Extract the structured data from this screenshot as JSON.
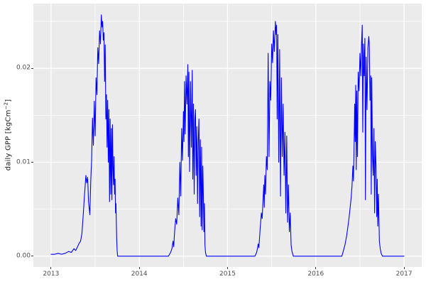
{
  "chart_data": {
    "type": "line",
    "title": "",
    "xlabel": "",
    "ylabel": "daily GPP [kgCm^-2]",
    "ylabel_parts": {
      "main": "daily GPP [kgCm",
      "sup": "−2",
      "close": "]"
    },
    "x_ticks": [
      2013,
      2014,
      2015,
      2016,
      2017
    ],
    "x_minor": [
      2013.5,
      2014.5,
      2015.5,
      2016.5
    ],
    "y_ticks": [
      0.0,
      0.01,
      0.02
    ],
    "y_tick_labels": [
      "0.00",
      "0.01",
      "0.02"
    ],
    "y_minor": [
      0.005,
      0.015,
      0.025
    ],
    "xlim": [
      2012.8,
      2017.2
    ],
    "ylim": [
      -0.00115,
      0.0269
    ],
    "grid": true,
    "legend": "none",
    "colors": {
      "panel_background": "#EBEBEB",
      "grid_major": "#FFFFFF",
      "grid_minor": "#FFFFFF",
      "line": "#0000FF",
      "axis_text": "#4D4D4D",
      "tick_mark": "#333333"
    },
    "series": [
      {
        "name": "daily GPP",
        "color": "#0000FF",
        "points": [
          [
            2013.0,
            0.0002
          ],
          [
            2013.04,
            0.0002
          ],
          [
            2013.08,
            0.0003
          ],
          [
            2013.12,
            0.0002
          ],
          [
            2013.16,
            0.0003
          ],
          [
            2013.2,
            0.0005
          ],
          [
            2013.23,
            0.0004
          ],
          [
            2013.26,
            0.0008
          ],
          [
            2013.28,
            0.0006
          ],
          [
            2013.3,
            0.001
          ],
          [
            2013.32,
            0.0014
          ],
          [
            2013.335,
            0.0016
          ],
          [
            2013.35,
            0.0024
          ],
          [
            2013.365,
            0.0044
          ],
          [
            2013.38,
            0.0066
          ],
          [
            2013.395,
            0.0086
          ],
          [
            2013.405,
            0.0078
          ],
          [
            2013.415,
            0.0084
          ],
          [
            2013.425,
            0.0058
          ],
          [
            2013.44,
            0.0044
          ],
          [
            2013.45,
            0.008
          ],
          [
            2013.46,
            0.0102
          ],
          [
            2013.47,
            0.0147
          ],
          [
            2013.48,
            0.0118
          ],
          [
            2013.49,
            0.0165
          ],
          [
            2013.5,
            0.0128
          ],
          [
            2013.51,
            0.019
          ],
          [
            2013.52,
            0.0172
          ],
          [
            2013.53,
            0.0222
          ],
          [
            2013.54,
            0.0205
          ],
          [
            2013.55,
            0.024
          ],
          [
            2013.56,
            0.0226
          ],
          [
            2013.57,
            0.0257
          ],
          [
            2013.578,
            0.0244
          ],
          [
            2013.585,
            0.025
          ],
          [
            2013.592,
            0.023
          ],
          [
            2013.6,
            0.0238
          ],
          [
            2013.607,
            0.0186
          ],
          [
            2013.614,
            0.0225
          ],
          [
            2013.621,
            0.0146
          ],
          [
            2013.628,
            0.0172
          ],
          [
            2013.635,
            0.0116
          ],
          [
            2013.642,
            0.0166
          ],
          [
            2013.649,
            0.01
          ],
          [
            2013.656,
            0.0156
          ],
          [
            2013.663,
            0.0058
          ],
          [
            2013.67,
            0.0146
          ],
          [
            2013.677,
            0.0066
          ],
          [
            2013.684,
            0.0136
          ],
          [
            2013.69,
            0.006
          ],
          [
            2013.696,
            0.014
          ],
          [
            2013.702,
            0.0096
          ],
          [
            2013.708,
            0.0076
          ],
          [
            2013.714,
            0.0106
          ],
          [
            2013.72,
            0.0066
          ],
          [
            2013.726,
            0.0082
          ],
          [
            2013.731,
            0.0046
          ],
          [
            2013.736,
            0.0056
          ],
          [
            2013.741,
            0.003
          ],
          [
            2013.745,
            0.0016
          ],
          [
            2013.749,
            0.0006
          ],
          [
            2013.755,
            0.0
          ],
          [
            2013.85,
            0.0
          ],
          [
            2013.95,
            0.0
          ],
          [
            2014.05,
            0.0
          ],
          [
            2014.15,
            0.0
          ],
          [
            2014.25,
            0.0
          ],
          [
            2014.33,
            0.0
          ],
          [
            2014.355,
            0.0004
          ],
          [
            2014.37,
            0.0008
          ],
          [
            2014.382,
            0.0016
          ],
          [
            2014.39,
            0.001
          ],
          [
            2014.4,
            0.0026
          ],
          [
            2014.412,
            0.004
          ],
          [
            2014.424,
            0.0034
          ],
          [
            2014.436,
            0.0062
          ],
          [
            2014.448,
            0.0044
          ],
          [
            2014.46,
            0.01
          ],
          [
            2014.47,
            0.0064
          ],
          [
            2014.48,
            0.0136
          ],
          [
            2014.49,
            0.0102
          ],
          [
            2014.5,
            0.0154
          ],
          [
            2014.506,
            0.0122
          ],
          [
            2014.512,
            0.0186
          ],
          [
            2014.52,
            0.013
          ],
          [
            2014.53,
            0.0192
          ],
          [
            2014.54,
            0.0162
          ],
          [
            2014.55,
            0.0204
          ],
          [
            2014.556,
            0.0106
          ],
          [
            2014.562,
            0.0196
          ],
          [
            2014.57,
            0.009
          ],
          [
            2014.58,
            0.0186
          ],
          [
            2014.59,
            0.0116
          ],
          [
            2014.6,
            0.0198
          ],
          [
            2014.606,
            0.0082
          ],
          [
            2014.614,
            0.0162
          ],
          [
            2014.622,
            0.0066
          ],
          [
            2014.63,
            0.0146
          ],
          [
            2014.637,
            0.0156
          ],
          [
            2014.644,
            0.0086
          ],
          [
            2014.652,
            0.0138
          ],
          [
            2014.66,
            0.0056
          ],
          [
            2014.668,
            0.0122
          ],
          [
            2014.676,
            0.0146
          ],
          [
            2014.684,
            0.0042
          ],
          [
            2014.692,
            0.0124
          ],
          [
            2014.7,
            0.0032
          ],
          [
            2014.706,
            0.0116
          ],
          [
            2014.712,
            0.0028
          ],
          [
            2014.72,
            0.0096
          ],
          [
            2014.726,
            0.0066
          ],
          [
            2014.732,
            0.0026
          ],
          [
            2014.738,
            0.0056
          ],
          [
            2014.744,
            0.0012
          ],
          [
            2014.75,
            0.0004
          ],
          [
            2014.76,
            0.0
          ],
          [
            2014.85,
            0.0
          ],
          [
            2014.95,
            0.0
          ],
          [
            2015.05,
            0.0
          ],
          [
            2015.15,
            0.0
          ],
          [
            2015.25,
            0.0
          ],
          [
            2015.31,
            0.0
          ],
          [
            2015.33,
            0.0004
          ],
          [
            2015.34,
            0.0009
          ],
          [
            2015.347,
            0.0013
          ],
          [
            2015.355,
            0.0009
          ],
          [
            2015.37,
            0.003
          ],
          [
            2015.383,
            0.0046
          ],
          [
            2015.392,
            0.004
          ],
          [
            2015.402,
            0.006
          ],
          [
            2015.41,
            0.0076
          ],
          [
            2015.416,
            0.0052
          ],
          [
            2015.422,
            0.0086
          ],
          [
            2015.43,
            0.0066
          ],
          [
            2015.44,
            0.0106
          ],
          [
            2015.45,
            0.0092
          ],
          [
            2015.46,
            0.0216
          ],
          [
            2015.47,
            0.0106
          ],
          [
            2015.48,
            0.0186
          ],
          [
            2015.49,
            0.0166
          ],
          [
            2015.5,
            0.0226
          ],
          [
            2015.51,
            0.0206
          ],
          [
            2015.52,
            0.024
          ],
          [
            2015.53,
            0.0218
          ],
          [
            2015.542,
            0.025
          ],
          [
            2015.55,
            0.0236
          ],
          [
            2015.556,
            0.0246
          ],
          [
            2015.562,
            0.0146
          ],
          [
            2015.57,
            0.0236
          ],
          [
            2015.58,
            0.01
          ],
          [
            2015.59,
            0.022
          ],
          [
            2015.6,
            0.0064
          ],
          [
            2015.61,
            0.019
          ],
          [
            2015.62,
            0.0106
          ],
          [
            2015.63,
            0.0162
          ],
          [
            2015.64,
            0.0086
          ],
          [
            2015.65,
            0.0132
          ],
          [
            2015.66,
            0.0046
          ],
          [
            2015.67,
            0.0128
          ],
          [
            2015.68,
            0.0036
          ],
          [
            2015.69,
            0.0076
          ],
          [
            2015.7,
            0.0026
          ],
          [
            2015.71,
            0.0046
          ],
          [
            2015.72,
            0.0012
          ],
          [
            2015.73,
            0.0005
          ],
          [
            2015.745,
            0.0
          ],
          [
            2015.85,
            0.0
          ],
          [
            2015.95,
            0.0
          ],
          [
            2016.05,
            0.0
          ],
          [
            2016.15,
            0.0
          ],
          [
            2016.25,
            0.0
          ],
          [
            2016.295,
            0.0
          ],
          [
            2016.31,
            0.0005
          ],
          [
            2016.33,
            0.0012
          ],
          [
            2016.35,
            0.0022
          ],
          [
            2016.37,
            0.0036
          ],
          [
            2016.385,
            0.0048
          ],
          [
            2016.4,
            0.0062
          ],
          [
            2016.41,
            0.0075
          ],
          [
            2016.42,
            0.0096
          ],
          [
            2016.426,
            0.008
          ],
          [
            2016.432,
            0.0106
          ],
          [
            2016.44,
            0.0162
          ],
          [
            2016.446,
            0.0122
          ],
          [
            2016.452,
            0.0182
          ],
          [
            2016.458,
            0.0092
          ],
          [
            2016.464,
            0.0176
          ],
          [
            2016.472,
            0.0106
          ],
          [
            2016.48,
            0.0196
          ],
          [
            2016.49,
            0.0176
          ],
          [
            2016.5,
            0.0216
          ],
          [
            2016.51,
            0.0192
          ],
          [
            2016.518,
            0.0226
          ],
          [
            2016.526,
            0.0246
          ],
          [
            2016.532,
            0.0132
          ],
          [
            2016.54,
            0.0226
          ],
          [
            2016.548,
            0.0192
          ],
          [
            2016.556,
            0.0232
          ],
          [
            2016.562,
            0.006
          ],
          [
            2016.57,
            0.0212
          ],
          [
            2016.58,
            0.0156
          ],
          [
            2016.59,
            0.0222
          ],
          [
            2016.6,
            0.0234
          ],
          [
            2016.606,
            0.0226
          ],
          [
            2016.614,
            0.0166
          ],
          [
            2016.622,
            0.0192
          ],
          [
            2016.628,
            0.0066
          ],
          [
            2016.634,
            0.019
          ],
          [
            2016.642,
            0.0106
          ],
          [
            2016.65,
            0.0086
          ],
          [
            2016.658,
            0.0136
          ],
          [
            2016.666,
            0.0046
          ],
          [
            2016.674,
            0.0122
          ],
          [
            2016.682,
            0.0096
          ],
          [
            2016.69,
            0.0042
          ],
          [
            2016.696,
            0.0082
          ],
          [
            2016.702,
            0.0032
          ],
          [
            2016.71,
            0.0066
          ],
          [
            2016.72,
            0.0016
          ],
          [
            2016.73,
            0.0008
          ],
          [
            2016.74,
            0.0003
          ],
          [
            2016.755,
            0.0
          ],
          [
            2016.85,
            0.0
          ],
          [
            2016.95,
            0.0
          ],
          [
            2017.0,
            0.0
          ]
        ]
      }
    ]
  }
}
